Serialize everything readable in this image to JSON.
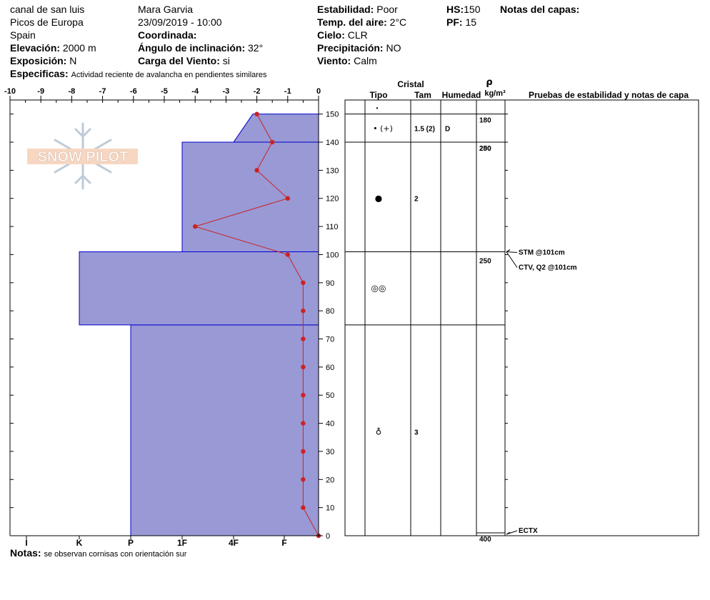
{
  "header": {
    "location": "canal de san luis",
    "region": "Picos de Europa",
    "country": "Spain",
    "elevation_label": "Elevación:",
    "elevation_value": "2000 m",
    "exposure_label": "Exposición:",
    "exposure_value": "N",
    "observer": "Mara Garvia",
    "datetime": "23/09/2019 - 10:00",
    "coordinate_label": "Coordinada:",
    "coordinate_value": "",
    "slope_label": "Ángulo de inclinación:",
    "slope_value": "32°",
    "wind_load_label": "Carga del Viento:",
    "wind_load_value": "si",
    "stability_label": "Estabilidad:",
    "stability_value": "Poor",
    "air_temp_label": "Temp. del aire:",
    "air_temp_value": "2°C",
    "sky_label": "Cielo:",
    "sky_value": "CLR",
    "precip_label": "Precipitación:",
    "precip_value": "NO",
    "wind_label": "Viento:",
    "wind_value": "Calm",
    "hs_label": "HS:",
    "hs_value": "150",
    "pf_label": "PF:",
    "pf_value": "15",
    "layer_notes_label": "Notas del capas:",
    "specifics_label": "Especificas:",
    "specifics_value": "Actividad reciente de avalancha en pendientes similares"
  },
  "footer": {
    "notes_label": "Notas:",
    "notes_value": "se observan cornisas con orientación sur"
  },
  "logo": {
    "text": "SNOW PILOT"
  },
  "table_headers": {
    "crystal": "Cristal",
    "type": "Tipo",
    "size": "Tam",
    "moisture": "Humedad",
    "rho": "ρ",
    "density_unit": "kg/m³",
    "tests": "Pruebas de estabilidad y notas de capa"
  },
  "chart_data": {
    "type": "snow_profile",
    "temperature_axis": {
      "ticks": [
        -10,
        -9,
        -8,
        -7,
        -6,
        -5,
        -4,
        -3,
        -2,
        -1,
        0
      ],
      "range": [
        -10,
        0
      ]
    },
    "height_axis": {
      "ticks": [
        0,
        10,
        20,
        30,
        40,
        50,
        60,
        70,
        80,
        90,
        100,
        110,
        120,
        130,
        140,
        150
      ],
      "range": [
        0,
        155
      ]
    },
    "hardness_axis": {
      "labels": [
        "I",
        "K",
        "P",
        "1F",
        "4F",
        "F"
      ]
    },
    "hardness_layers": [
      {
        "bottom": 0,
        "top": 75,
        "hardness": "P"
      },
      {
        "bottom": 75,
        "top": 101,
        "hardness": "K"
      },
      {
        "bottom": 101,
        "top": 140,
        "hardness": "1F"
      },
      {
        "bottom": 140,
        "top": 150,
        "hardness": "4F"
      }
    ],
    "temperature_profile": [
      {
        "height": 0,
        "temp": 0
      },
      {
        "height": 10,
        "temp": -0.5
      },
      {
        "height": 20,
        "temp": -0.5
      },
      {
        "height": 30,
        "temp": -0.5
      },
      {
        "height": 40,
        "temp": -0.5
      },
      {
        "height": 50,
        "temp": -0.5
      },
      {
        "height": 60,
        "temp": -0.5
      },
      {
        "height": 70,
        "temp": -0.5
      },
      {
        "height": 80,
        "temp": -0.5
      },
      {
        "height": 90,
        "temp": -0.5
      },
      {
        "height": 100,
        "temp": -1
      },
      {
        "height": 110,
        "temp": -4
      },
      {
        "height": 120,
        "temp": -1
      },
      {
        "height": 130,
        "temp": -2
      },
      {
        "height": 140,
        "temp": -1.5
      },
      {
        "height": 150,
        "temp": -2
      }
    ],
    "layer_boundaries": [
      150,
      140,
      101,
      75,
      0
    ],
    "layers": [
      {
        "bottom": 140,
        "top": 150,
        "crystal": "• (+)",
        "size": "1.5 (2)",
        "moisture": "D"
      },
      {
        "bottom": 101,
        "top": 140,
        "crystal": "●",
        "size": "2",
        "moisture": ""
      },
      {
        "bottom": 75,
        "top": 101,
        "crystal": "◎◎",
        "size": "",
        "moisture": ""
      },
      {
        "bottom": 0,
        "top": 75,
        "crystal": "♁",
        "size": "3",
        "moisture": ""
      }
    ],
    "surface_symbol": "•",
    "densities": [
      {
        "height": 145,
        "value": "180"
      },
      {
        "height": 140,
        "value": "200"
      },
      {
        "height": 140,
        "value": "250"
      },
      {
        "height": 100,
        "value": "250"
      },
      {
        "height": 0,
        "value": "400"
      }
    ],
    "stability_tests": [
      {
        "height": 101,
        "label": "STM @101cm"
      },
      {
        "height": 101,
        "label": "CTV, Q2 @101cm"
      },
      {
        "height": 0,
        "label": "ECTX"
      }
    ],
    "colors": {
      "layer_fill": "#9999d6",
      "layer_edge": "#0000cc",
      "temp_line": "#cc2222"
    }
  }
}
